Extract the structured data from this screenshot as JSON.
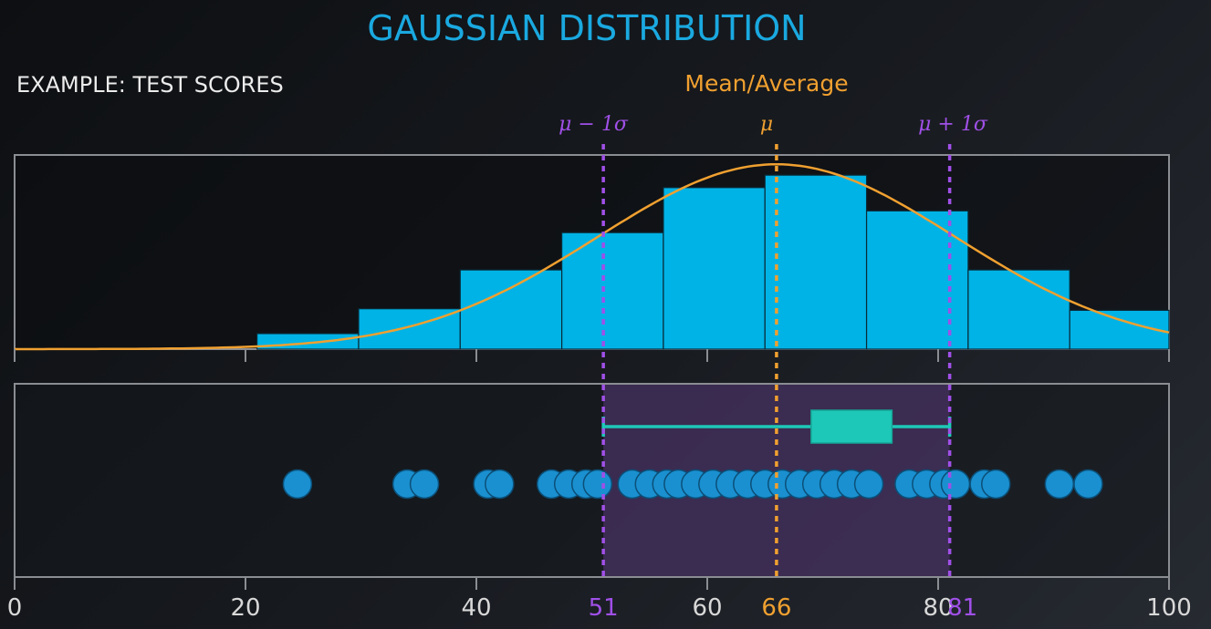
{
  "chart_data": {
    "type": "bar",
    "title": "GAUSSIAN DISTRIBUTION",
    "subtitle": "EXAMPLE: TEST SCORES",
    "mean_label": "Mean/Average",
    "xlim": [
      0,
      100
    ],
    "x_ticks": [
      0,
      20,
      40,
      60,
      80,
      100
    ],
    "x_tick_labels": [
      "0",
      "20",
      "40",
      "60",
      "80",
      "100"
    ],
    "histogram": {
      "bin_edges": [
        21,
        29.8,
        38.6,
        47.4,
        56.2,
        65,
        73.8,
        82.6,
        91.4,
        100
      ],
      "heights": [
        1,
        2.6,
        5.1,
        7.5,
        10.4,
        11.2,
        8.9,
        5.1,
        2.5
      ],
      "ylim": [
        0,
        12.5
      ]
    },
    "gaussian_curve": {
      "mean": 66,
      "sd": 15.5,
      "peak": 11.9
    },
    "mean": 66,
    "sigma_lower": 51,
    "sigma_upper": 81,
    "mean_marker_label": "μ",
    "lower_marker_label": "μ − 1σ",
    "upper_marker_label": "μ + 1σ",
    "mean_axis_label": "66",
    "lower_axis_label": "51",
    "upper_axis_label": "81",
    "boxplot": {
      "whisker_low": 51,
      "q1": 69,
      "q3": 76,
      "whisker_high": 81
    },
    "scores": [
      24.5,
      34,
      35.5,
      41,
      42,
      46.5,
      48,
      49.5,
      50.5,
      53.5,
      55,
      56.5,
      57.5,
      59,
      60.5,
      62,
      63.5,
      65,
      66.5,
      68,
      69.5,
      71,
      72.5,
      74,
      77.5,
      79,
      80.5,
      81.5,
      84,
      85,
      90.5,
      93
    ],
    "colors": {
      "title": "#1aa9e0",
      "bars": "#00b3e6",
      "curve": "#f0a030",
      "mean": "#f0a030",
      "sigma": "#a050e8",
      "band": "#5a3a7a",
      "box": "#1ec8b8",
      "dots": "#1a90d0",
      "frame": "#8a8d92",
      "text": "#e6e6e6"
    }
  }
}
